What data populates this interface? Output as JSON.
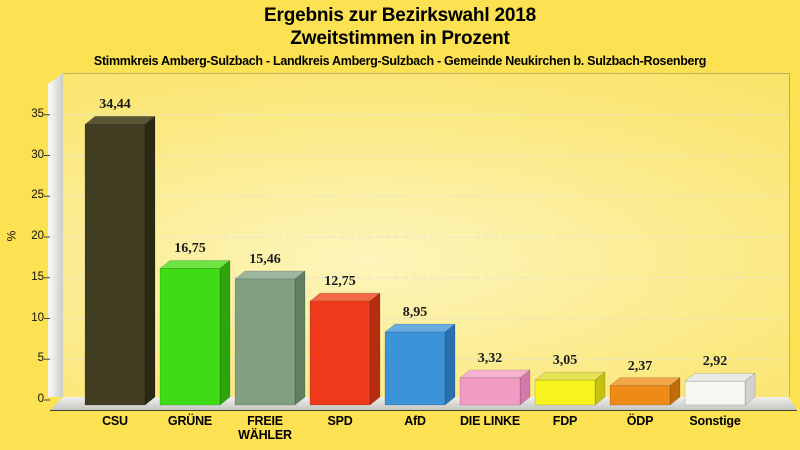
{
  "header": {
    "title_line1": "Ergebnis zur Bezirkswahl 2018",
    "title_line2": "Zweitstimmen in Prozent",
    "subtitle": "Stimmkreis Amberg-Sulzbach - Landkreis Amberg-Sulzbach - Gemeinde Neukirchen b. Sulzbach-Rosenberg"
  },
  "chart_data": {
    "type": "bar",
    "title": "Ergebnis zur Bezirkswahl 2018",
    "subtitle": "Zweitstimmen in Prozent",
    "note": "Stimmkreis Amberg-Sulzbach - Landkreis Amberg-Sulzbach - Gemeinde Neukirchen b. Sulzbach-Rosenberg",
    "categories": [
      "CSU",
      "GRÜNE",
      "FREIE WÄHLER",
      "SPD",
      "AfD",
      "DIE LINKE",
      "FDP",
      "ÖDP",
      "Sonstige"
    ],
    "values": [
      34.44,
      16.75,
      15.46,
      12.75,
      8.95,
      3.32,
      3.05,
      2.37,
      2.92
    ],
    "value_labels": [
      "34,44",
      "16,75",
      "15,46",
      "12,75",
      "8,95",
      "3,32",
      "3,05",
      "2,37",
      "2,92"
    ],
    "xlabel": "",
    "ylabel": "%",
    "ylim": [
      0,
      39
    ],
    "yticks": [
      0,
      5,
      10,
      15,
      20,
      25,
      30,
      35
    ],
    "grid": "horizontal-dashed",
    "legend": "none",
    "style": "3d-column",
    "bar_styles": [
      {
        "front": "#403d23",
        "top": "#585434",
        "side": "#2b2914"
      },
      {
        "front": "#3edc15",
        "top": "#6ce443",
        "side": "#2ca50d"
      },
      {
        "front": "#81a083",
        "top": "#9eb59f",
        "side": "#60815f"
      },
      {
        "front": "#ee3a1b",
        "top": "#f26a45",
        "side": "#b62d10"
      },
      {
        "front": "#3c93d8",
        "top": "#68ace2",
        "side": "#2a70ae"
      },
      {
        "front": "#f39cc3",
        "top": "#f6b3d0",
        "side": "#d579a8"
      },
      {
        "front": "#f7f31e",
        "top": "#e6e356",
        "side": "#c5c011"
      },
      {
        "front": "#ee8b16",
        "top": "#f2a848",
        "side": "#c26c09"
      },
      {
        "front": "#f7f7f1",
        "top": "#eaeae4",
        "side": "#d2d2cc"
      }
    ],
    "colors": {
      "page_background": "#fce153",
      "plot_center": "#fdf5bb",
      "plot_edge": "#f8de54",
      "wall": "#d8d8d4",
      "gridline": "#dedede",
      "text": "#000000"
    }
  }
}
